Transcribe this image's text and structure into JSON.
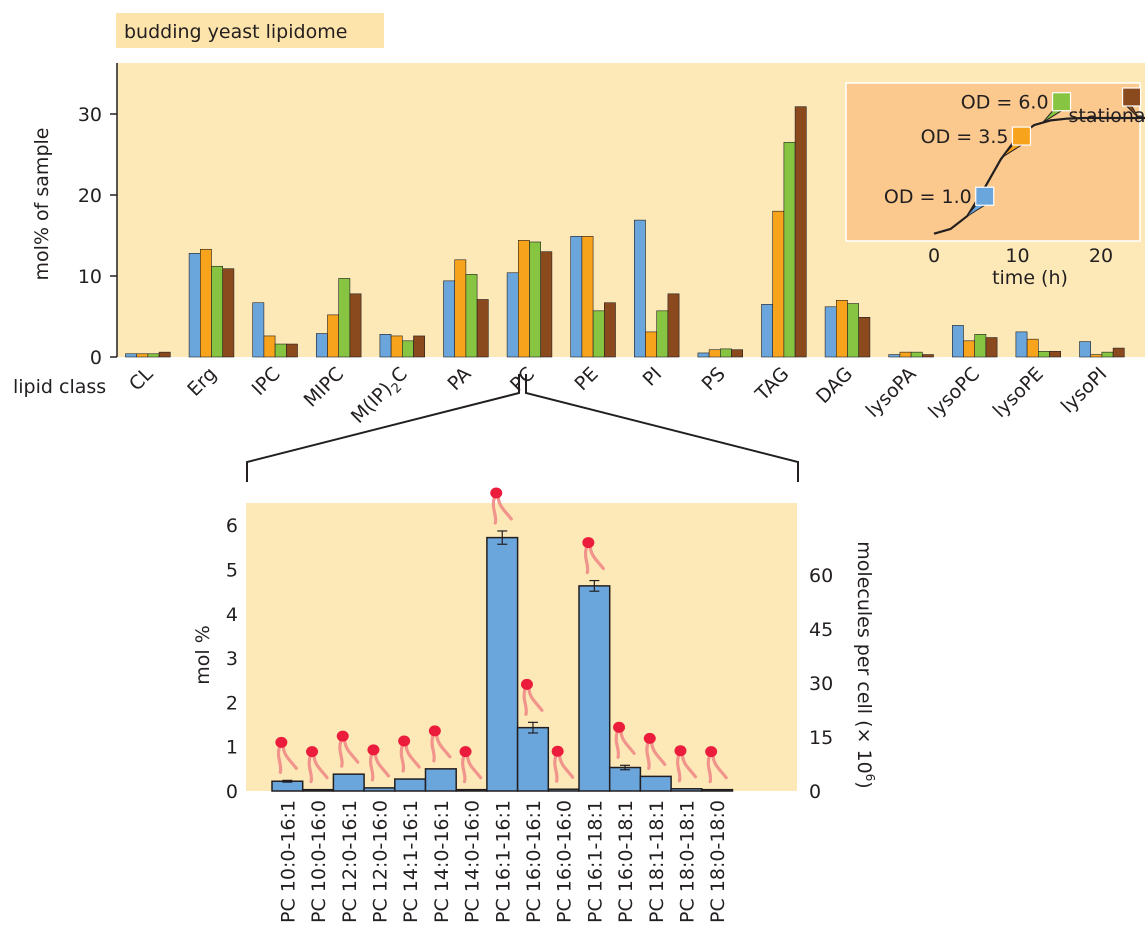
{
  "figure_title": "budding yeast lipidome",
  "colors": {
    "panel_bg": "#fde9b7",
    "title_bg": "#fde4ab",
    "inset_bg": "#fbc98e",
    "series": [
      "#6aa6dc",
      "#f7a31c",
      "#86c441",
      "#8b4a1d"
    ],
    "lipid_head": "#ec1c3c",
    "lipid_tail": "#f1948c"
  },
  "chart_data": [
    {
      "type": "bar",
      "ylabel": "mol% of sample",
      "category_axis_label": "lipid class",
      "yticks": [
        0,
        10,
        20,
        30
      ],
      "ylim": [
        0,
        35
      ],
      "categories": [
        "CL",
        "Erg",
        "IPC",
        "MIPC",
        "M(IP)",
        "PA",
        "PC",
        "PE",
        "PI",
        "PS",
        "TAG",
        "DAG",
        "lysoPA",
        "lysoPC",
        "lysoPE",
        "lysoPI"
      ],
      "category_subscripts": {
        "M(IP)": "2C"
      },
      "series": [
        {
          "values": [
            0.4,
            12.8,
            6.7,
            2.9,
            2.8,
            9.4,
            10.4,
            14.9,
            16.9,
            0.5,
            6.5,
            6.2,
            0.3,
            3.9,
            3.1,
            1.9
          ]
        },
        {
          "values": [
            0.4,
            13.3,
            2.6,
            5.2,
            2.6,
            12.0,
            14.4,
            14.9,
            3.1,
            0.9,
            18.0,
            7.0,
            0.6,
            2.0,
            2.2,
            0.3
          ]
        },
        {
          "values": [
            0.4,
            11.2,
            1.6,
            9.7,
            2.0,
            10.2,
            14.2,
            5.7,
            5.7,
            1.0,
            26.5,
            6.6,
            0.6,
            2.8,
            0.7,
            0.6
          ]
        },
        {
          "values": [
            0.6,
            10.9,
            1.6,
            7.8,
            2.6,
            7.1,
            13.0,
            6.7,
            7.8,
            0.9,
            30.9,
            4.9,
            0.3,
            2.4,
            0.7,
            1.1
          ]
        }
      ]
    },
    {
      "type": "line",
      "xlabel": "time (h)",
      "xticks": [
        0,
        10,
        20
      ],
      "xlim": [
        -4,
        26
      ],
      "x": [
        0,
        2,
        4,
        6,
        8,
        10,
        12,
        14,
        16,
        18,
        20,
        22,
        24,
        26
      ],
      "y": [
        0.02,
        0.06,
        0.17,
        0.4,
        0.65,
        0.84,
        0.94,
        0.98,
        0.995,
        1.0,
        1.0,
        1.0,
        1.0,
        1.0
      ],
      "markers": [
        {
          "label": "OD = 1.0",
          "x": 3.8
        },
        {
          "label": "OD = 3.5",
          "x": 8.2
        },
        {
          "label": "OD = 6.0",
          "x": 13.0
        },
        {
          "label": "stationary",
          "x": 24.5
        }
      ]
    },
    {
      "type": "bar",
      "ylabel_left": "mol %",
      "ylabel_right": "molecules per cell (× 10",
      "ylabel_right_superscript": "6",
      "yticks_left": [
        0,
        1,
        2,
        3,
        4,
        5,
        6
      ],
      "yticks_right": [
        0,
        15,
        30,
        45,
        60
      ],
      "ylim": [
        0,
        6.8
      ],
      "categories": [
        "PC 10:0-16:1",
        "PC 10:0-16:0",
        "PC 12:0-16:1",
        "PC 12:0-16:0",
        "PC 14:1-16:1",
        "PC 14:0-16:1",
        "PC 14:0-16:0",
        "PC 16:1-16:1",
        "PC 16:0-16:1",
        "PC 16:0-16:0",
        "PC 16:1-18:1",
        "PC 16:0-18:1",
        "PC 18:1-18:1",
        "PC 18:0-18:1",
        "PC 18:0-18:0"
      ],
      "values": [
        0.22,
        0.03,
        0.38,
        0.07,
        0.27,
        0.5,
        0.03,
        5.72,
        1.43,
        0.04,
        4.63,
        0.53,
        0.33,
        0.05,
        0.03
      ],
      "errors": [
        0.02,
        0,
        0,
        0,
        0,
        0,
        0,
        0.15,
        0.12,
        0,
        0.12,
        0.05,
        0,
        0,
        0
      ]
    }
  ]
}
